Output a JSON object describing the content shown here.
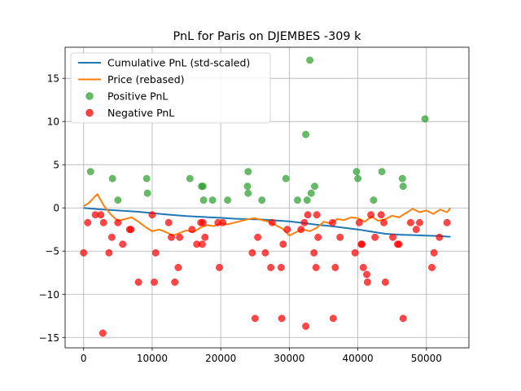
{
  "chart_data": {
    "type": "scatter",
    "title": "PnL for Paris on DJEMBES -309 k",
    "xlabel": "",
    "ylabel": "",
    "xlim": [
      -2700,
      56200
    ],
    "ylim": [
      -16.2,
      18.6
    ],
    "xticks": [
      0,
      10000,
      20000,
      30000,
      40000,
      50000
    ],
    "yticks": [
      -15,
      -10,
      -5,
      0,
      5,
      10,
      15
    ],
    "grid": true,
    "legend_position": "top-left",
    "colors": {
      "cumulative": "#1f77b4",
      "price": "#ff7f0e",
      "positive": "#2ca02c",
      "negative": "#ff0000"
    },
    "series": [
      {
        "name": "Cumulative PnL (std-scaled)",
        "kind": "line",
        "x": [
          0,
          2000,
          5000,
          8000,
          10000,
          12000,
          15000,
          17500,
          20000,
          22000,
          24000,
          26000,
          28000,
          30000,
          32000,
          34000,
          36000,
          38000,
          40000,
          42000,
          44000,
          46000,
          48000,
          50000,
          52000,
          53500
        ],
        "y": [
          0,
          -0.15,
          -0.3,
          -0.45,
          -0.6,
          -0.75,
          -0.95,
          -1.05,
          -1.15,
          -1.25,
          -1.3,
          -1.35,
          -1.45,
          -1.55,
          -1.75,
          -1.95,
          -2.1,
          -2.3,
          -2.5,
          -2.75,
          -3.0,
          -3.1,
          -3.15,
          -3.2,
          -3.25,
          -3.35
        ]
      },
      {
        "name": "Price (rebased)",
        "kind": "line",
        "x": [
          0,
          800,
          1500,
          2000,
          2500,
          3000,
          4000,
          5000,
          6000,
          7000,
          8000,
          9000,
          10000,
          11000,
          12000,
          13000,
          14000,
          15000,
          16000,
          17000,
          18000,
          19000,
          20000,
          21000,
          22000,
          23000,
          24000,
          25000,
          26000,
          27000,
          28000,
          29000,
          30000,
          31000,
          32000,
          33000,
          34000,
          35000,
          36000,
          37000,
          38000,
          39000,
          40000,
          41000,
          42000,
          43000,
          44000,
          45000,
          46000,
          47000,
          48000,
          49000,
          50000,
          51000,
          52000,
          53000,
          53500
        ],
        "y": [
          0.2,
          0.6,
          1.2,
          1.6,
          0.9,
          0.2,
          -0.8,
          -1.5,
          -1.3,
          -1.1,
          -1.6,
          -2.2,
          -2.7,
          -2.5,
          -2.8,
          -3.2,
          -2.9,
          -2.6,
          -2.8,
          -2.3,
          -2.0,
          -2.1,
          -1.8,
          -1.9,
          -1.7,
          -1.5,
          -1.3,
          -1.2,
          -1.4,
          -1.6,
          -2.0,
          -2.4,
          -3.2,
          -2.8,
          -2.5,
          -2.7,
          -2.3,
          -1.6,
          -1.8,
          -1.3,
          -1.4,
          -1.1,
          -1.2,
          -1.6,
          -1.0,
          -1.5,
          -1.3,
          -0.9,
          -1.1,
          -0.6,
          -0.1,
          -0.5,
          -0.3,
          -0.7,
          -0.2,
          -0.5,
          0.0
        ]
      },
      {
        "name": "Positive PnL",
        "kind": "scatter",
        "points": [
          [
            1000,
            4.2
          ],
          [
            4200,
            3.4
          ],
          [
            5000,
            0.9
          ],
          [
            9200,
            3.4
          ],
          [
            9300,
            1.7
          ],
          [
            15500,
            3.4
          ],
          [
            17200,
            2.5
          ],
          [
            17400,
            2.5
          ],
          [
            17500,
            0.9
          ],
          [
            18800,
            0.9
          ],
          [
            21000,
            0.9
          ],
          [
            24000,
            4.2
          ],
          [
            24000,
            1.7
          ],
          [
            23900,
            2.5
          ],
          [
            26000,
            0.9
          ],
          [
            29500,
            3.4
          ],
          [
            31200,
            0.9
          ],
          [
            32400,
            8.5
          ],
          [
            32600,
            0.9
          ],
          [
            33000,
            17.1
          ],
          [
            33200,
            1.7
          ],
          [
            33700,
            2.5
          ],
          [
            39800,
            4.2
          ],
          [
            40000,
            3.4
          ],
          [
            42300,
            0.9
          ],
          [
            43500,
            4.2
          ],
          [
            46500,
            3.4
          ],
          [
            46600,
            2.5
          ],
          [
            49800,
            10.3
          ]
        ]
      },
      {
        "name": "Negative PnL",
        "kind": "scatter",
        "points": [
          [
            0,
            -5.2
          ],
          [
            600,
            -1.7
          ],
          [
            1700,
            -0.8
          ],
          [
            2500,
            -0.8
          ],
          [
            2800,
            -14.5
          ],
          [
            2900,
            -1.7
          ],
          [
            3700,
            -5.2
          ],
          [
            4100,
            -3.4
          ],
          [
            5000,
            -1.7
          ],
          [
            5700,
            -4.2
          ],
          [
            6700,
            -2.5
          ],
          [
            6900,
            -2.5
          ],
          [
            8000,
            -8.6
          ],
          [
            10000,
            -0.8
          ],
          [
            10300,
            -8.6
          ],
          [
            10500,
            -5.2
          ],
          [
            12400,
            -1.7
          ],
          [
            12800,
            -3.4
          ],
          [
            13300,
            -8.6
          ],
          [
            13800,
            -6.9
          ],
          [
            14000,
            -3.4
          ],
          [
            15800,
            -2.5
          ],
          [
            16500,
            -4.2
          ],
          [
            17100,
            -1.7
          ],
          [
            17300,
            -4.2
          ],
          [
            17400,
            -1.7
          ],
          [
            17700,
            -3.4
          ],
          [
            19600,
            -1.7
          ],
          [
            19800,
            -6.9
          ],
          [
            20300,
            -1.7
          ],
          [
            24600,
            -5.2
          ],
          [
            25000,
            -12.8
          ],
          [
            25400,
            -3.4
          ],
          [
            26500,
            -5.2
          ],
          [
            27300,
            -6.9
          ],
          [
            27500,
            -1.7
          ],
          [
            28800,
            -6.9
          ],
          [
            28900,
            -12.8
          ],
          [
            29100,
            -4.2
          ],
          [
            29700,
            -2.5
          ],
          [
            31700,
            -2.5
          ],
          [
            32200,
            -1.7
          ],
          [
            32400,
            -13.7
          ],
          [
            32700,
            -0.8
          ],
          [
            33600,
            -5.2
          ],
          [
            33900,
            -6.9
          ],
          [
            34000,
            -0.8
          ],
          [
            34200,
            -3.4
          ],
          [
            36300,
            -1.7
          ],
          [
            36400,
            -12.8
          ],
          [
            36700,
            -6.9
          ],
          [
            37400,
            -3.4
          ],
          [
            39600,
            -5.2
          ],
          [
            40200,
            -1.7
          ],
          [
            40500,
            -4.2
          ],
          [
            40600,
            -4.2
          ],
          [
            40800,
            -6.9
          ],
          [
            41300,
            -7.7
          ],
          [
            41400,
            -8.6
          ],
          [
            41900,
            -0.8
          ],
          [
            42500,
            -3.4
          ],
          [
            43400,
            -0.8
          ],
          [
            43800,
            -1.7
          ],
          [
            44000,
            -8.6
          ],
          [
            45100,
            -3.4
          ],
          [
            45800,
            -4.2
          ],
          [
            46000,
            -4.2
          ],
          [
            46600,
            -12.8
          ],
          [
            47700,
            -1.7
          ],
          [
            48500,
            -2.5
          ],
          [
            49000,
            -1.7
          ],
          [
            50800,
            -6.9
          ],
          [
            51100,
            -5.2
          ],
          [
            51900,
            -3.4
          ],
          [
            53000,
            -1.7
          ]
        ]
      }
    ]
  }
}
